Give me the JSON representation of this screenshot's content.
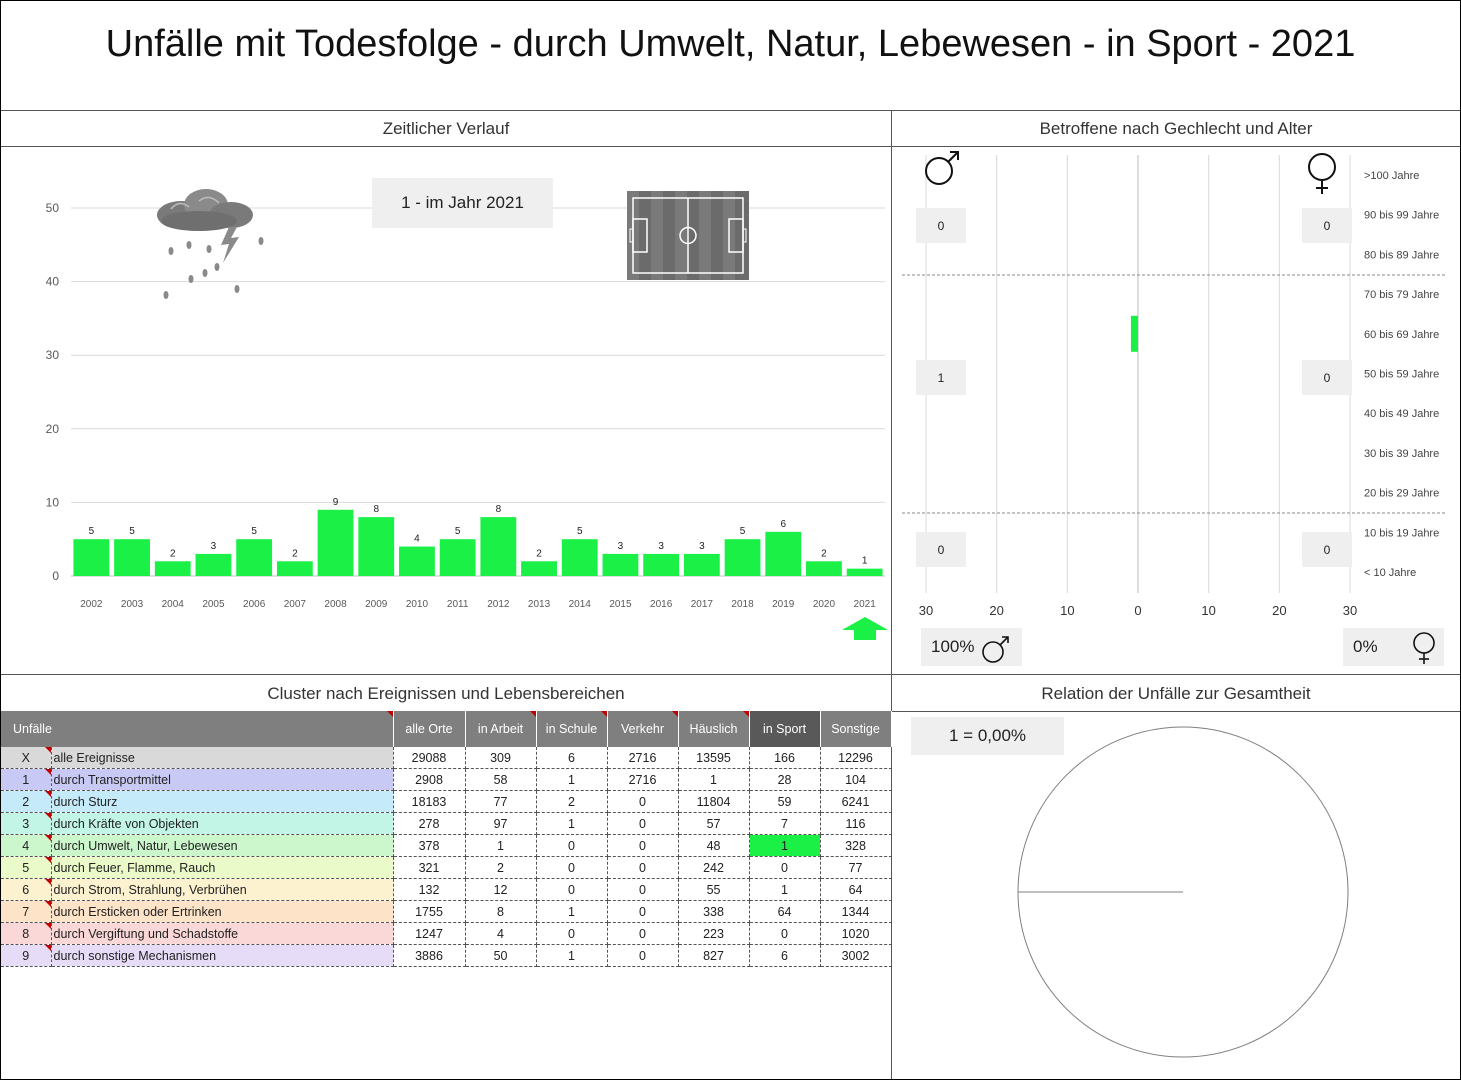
{
  "title": "Unfälle mit Todesfolge - durch Umwelt, Natur, Lebewesen - in Sport - 2021",
  "sections": {
    "timeline": "Zeitlicher Verlauf",
    "demographics": "Betroffene nach Gechlecht und Alter",
    "cluster": "Cluster nach Ereignissen und Lebensbereichen",
    "relation": "Relation der Unfälle zur Gesamtheit"
  },
  "timeline": {
    "year_badge": "1 - im Jahr 2021",
    "icons": [
      "storm-cloud-icon",
      "football-pitch-icon",
      "arrow-up-icon"
    ]
  },
  "colors": {
    "bar": "#1af046",
    "header": "#7f7f7f",
    "header_active": "#595959",
    "marker": "#c00000"
  },
  "chart_data": [
    {
      "type": "bar",
      "categories": [
        "2002",
        "2003",
        "2004",
        "2005",
        "2006",
        "2007",
        "2008",
        "2009",
        "2010",
        "2011",
        "2012",
        "2013",
        "2014",
        "2015",
        "2016",
        "2017",
        "2018",
        "2019",
        "2020",
        "2021"
      ],
      "values": [
        5,
        5,
        2,
        3,
        5,
        2,
        9,
        8,
        4,
        5,
        8,
        2,
        5,
        3,
        3,
        3,
        5,
        6,
        2,
        1
      ],
      "yticks": [
        0,
        10,
        20,
        30,
        40,
        50
      ],
      "ylim": [
        0,
        55
      ],
      "grid": true
    },
    {
      "type": "bar",
      "orientation": "horizontal-butterfly",
      "categories": [
        ">100 Jahre",
        "90 bis 99 Jahre",
        "80 bis 89 Jahre",
        "70 bis 79 Jahre",
        "60 bis 69 Jahre",
        "50 bis 59 Jahre",
        "40 bis 49 Jahre",
        "30 bis 39 Jahre",
        "20 bis 29 Jahre",
        "10 bis 19 Jahre",
        "< 10 Jahre"
      ],
      "series": [
        {
          "values": [
            0,
            0,
            0,
            0,
            1,
            0,
            0,
            0,
            0,
            0,
            0
          ]
        },
        {
          "values": [
            0,
            0,
            0,
            0,
            0,
            0,
            0,
            0,
            0,
            0,
            0
          ]
        }
      ],
      "xticks": [
        "30",
        "20",
        "10",
        "0",
        "10",
        "20",
        "30"
      ],
      "xlim": [
        -30,
        30
      ],
      "group_totals": {
        "male": [
          "0",
          "1",
          "0"
        ],
        "female": [
          "0",
          "0",
          "0"
        ]
      },
      "share": {
        "male": "100%",
        "female": "0%"
      }
    },
    {
      "type": "pie",
      "label": "1 =  0,00%",
      "values": [
        1,
        29088
      ]
    }
  ],
  "table": {
    "header_first": "Unfälle",
    "columns": [
      "alle Orte",
      "in Arbeit",
      "in Schule",
      "Verkehr",
      "Häuslich",
      "in Sport",
      "Sonstige"
    ],
    "active_column": 5,
    "rows": [
      {
        "id": "X",
        "label": "alle Ereignisse",
        "color": "#d9d9d9",
        "values": [
          "29088",
          "309",
          "6",
          "2716",
          "13595",
          "166",
          "12296"
        ]
      },
      {
        "id": "1",
        "label": "durch Transportmittel",
        "color": "#c9c9f5",
        "values": [
          "2908",
          "58",
          "1",
          "2716",
          "1",
          "28",
          "104"
        ]
      },
      {
        "id": "2",
        "label": "durch Sturz",
        "color": "#c5ebfa",
        "values": [
          "18183",
          "77",
          "2",
          "0",
          "11804",
          "59",
          "6241"
        ]
      },
      {
        "id": "3",
        "label": "durch Kräfte von Objekten",
        "color": "#c3f5e6",
        "values": [
          "278",
          "97",
          "1",
          "0",
          "57",
          "7",
          "116"
        ]
      },
      {
        "id": "4",
        "label": "durch Umwelt, Natur, Lebewesen",
        "color": "#ccf7cc",
        "values": [
          "378",
          "1",
          "0",
          "0",
          "48",
          "1",
          "328"
        ]
      },
      {
        "id": "5",
        "label": "durch Feuer, Flamme, Rauch",
        "color": "#eafac8",
        "values": [
          "321",
          "2",
          "0",
          "0",
          "242",
          "0",
          "77"
        ]
      },
      {
        "id": "6",
        "label": "durch Strom, Strahlung, Verbrühen",
        "color": "#fdf2cf",
        "values": [
          "132",
          "12",
          "0",
          "0",
          "55",
          "1",
          "64"
        ]
      },
      {
        "id": "7",
        "label": "durch Ersticken oder Ertrinken",
        "color": "#fde3c8",
        "values": [
          "1755",
          "8",
          "1",
          "0",
          "338",
          "64",
          "1344"
        ]
      },
      {
        "id": "8",
        "label": "durch Vergiftung und Schadstoffe",
        "color": "#fbd8d8",
        "values": [
          "1247",
          "4",
          "0",
          "0",
          "223",
          "0",
          "1020"
        ]
      },
      {
        "id": "9",
        "label": "durch sonstige Mechanismen",
        "color": "#e6dcf7",
        "values": [
          "3886",
          "50",
          "1",
          "0",
          "827",
          "6",
          "3002"
        ]
      }
    ],
    "highlight": {
      "row": 4,
      "col": 5
    }
  }
}
